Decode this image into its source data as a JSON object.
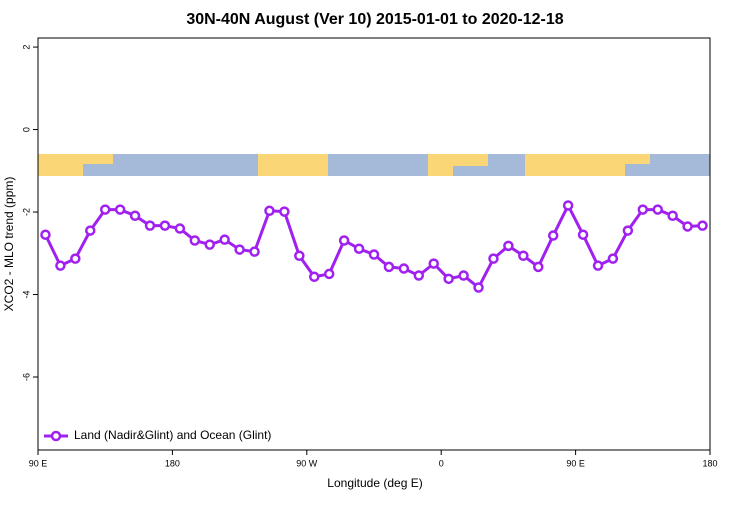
{
  "chart_data": {
    "type": "line",
    "title": "30N-40N August (Ver 10)   2015-01-01 to 2020-12-18",
    "x_label": "Longitude (deg E)",
    "y_label": "XCO2 - MLO trend (ppm)",
    "x": [
      95,
      105,
      115,
      125,
      135,
      145,
      155,
      165,
      175,
      185,
      195,
      205,
      215,
      225,
      235,
      245,
      255,
      265,
      275,
      285,
      295,
      305,
      315,
      325,
      335,
      345,
      355,
      365,
      375,
      385,
      395,
      405,
      415,
      425,
      435,
      445,
      455,
      465,
      475,
      485,
      495,
      505,
      515,
      525,
      535
    ],
    "series": [
      {
        "name": "Land (Nadir&Glint) and Ocean (Glint)",
        "color": "#a020f0",
        "values": [
          -2.55,
          -3.3,
          -3.13,
          -2.45,
          -1.94,
          -1.94,
          -2.09,
          -2.33,
          -2.33,
          -2.4,
          -2.69,
          -2.79,
          -2.67,
          -2.91,
          -2.96,
          -1.97,
          -1.99,
          -3.06,
          -3.57,
          -3.5,
          -2.69,
          -2.89,
          -3.03,
          -3.33,
          -3.37,
          -3.54,
          -3.25,
          -3.62,
          -3.54,
          -3.83,
          -3.13,
          -2.82,
          -3.06,
          -3.33,
          -2.57,
          -1.84,
          -2.55,
          -3.3,
          -3.13,
          -2.45,
          -1.94,
          -1.94,
          -2.09,
          -2.35,
          -2.33
        ]
      }
    ],
    "xlim": [
      90,
      540
    ],
    "xticks": [
      {
        "value": 90,
        "label": "90 E"
      },
      180,
      {
        "value": 270,
        "label": "90 W"
      },
      {
        "value": 360,
        "label": "0"
      },
      {
        "value": 450,
        "label": "90 E"
      },
      {
        "value": 540,
        "label": "180"
      }
    ],
    "ylim": [
      -7.77,
      2.22
    ],
    "yticks": [
      -6,
      -4,
      -2,
      0,
      2
    ],
    "legend": "bottom-left"
  }
}
